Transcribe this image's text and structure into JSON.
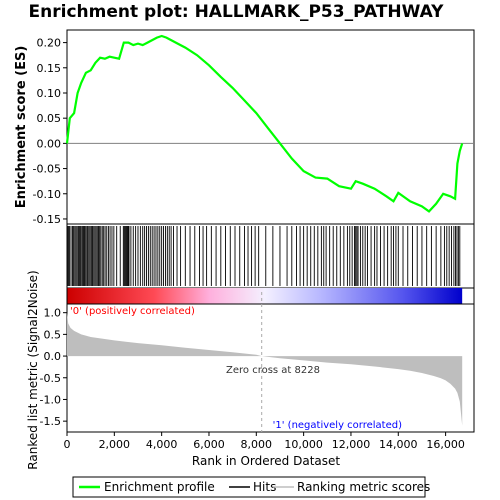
{
  "chart_data": {
    "type": "line",
    "title": "Enrichment plot: HALLMARK_P53_PATHWAY",
    "es_panel": {
      "ylabel": "Enrichment score (ES)",
      "ylim": [
        -0.16,
        0.225
      ],
      "yticks": [
        -0.15,
        -0.1,
        -0.05,
        0.0,
        0.05,
        0.1,
        0.15,
        0.2
      ],
      "ytick_labels": [
        "-0.15",
        "-0.10",
        "-0.05",
        "0.00",
        "0.05",
        "0.10",
        "0.15",
        "0.20"
      ],
      "series": [
        {
          "name": "Enrichment profile",
          "color": "#00ff00",
          "x": [
            0,
            120,
            300,
            450,
            600,
            800,
            1000,
            1200,
            1400,
            1600,
            1800,
            2000,
            2200,
            2400,
            2600,
            2800,
            3000,
            3200,
            3400,
            3600,
            3800,
            4000,
            4200,
            4400,
            4600,
            5000,
            5500,
            6000,
            6500,
            7000,
            7500,
            8000,
            8500,
            9000,
            9500,
            10000,
            10500,
            11000,
            11500,
            12000,
            12200,
            12500,
            13000,
            13500,
            13800,
            14000,
            14500,
            15000,
            15300,
            15600,
            15900,
            16200,
            16400,
            16500,
            16600,
            16700
          ],
          "y": [
            0.0,
            0.05,
            0.06,
            0.1,
            0.12,
            0.14,
            0.145,
            0.16,
            0.17,
            0.168,
            0.172,
            0.17,
            0.168,
            0.2,
            0.2,
            0.195,
            0.198,
            0.195,
            0.2,
            0.205,
            0.21,
            0.213,
            0.21,
            0.205,
            0.2,
            0.19,
            0.175,
            0.155,
            0.132,
            0.11,
            0.085,
            0.06,
            0.03,
            0.0,
            -0.03,
            -0.055,
            -0.068,
            -0.07,
            -0.085,
            -0.09,
            -0.075,
            -0.08,
            -0.09,
            -0.105,
            -0.115,
            -0.098,
            -0.115,
            -0.125,
            -0.135,
            -0.12,
            -0.1,
            -0.105,
            -0.11,
            -0.04,
            -0.015,
            0.0
          ]
        }
      ]
    },
    "hits": {
      "name": "Hits",
      "color": "#000000",
      "positions": [
        20,
        60,
        110,
        170,
        230,
        280,
        330,
        380,
        430,
        480,
        520,
        560,
        600,
        650,
        700,
        740,
        790,
        840,
        880,
        930,
        980,
        1030,
        1080,
        1130,
        1180,
        1230,
        1280,
        1330,
        1380,
        1430,
        1490,
        1550,
        1610,
        1680,
        1750,
        1820,
        1900,
        1980,
        2100,
        2250,
        2380,
        2420,
        2460,
        2500,
        2540,
        2580,
        2620,
        2700,
        2800,
        2900,
        3000,
        3100,
        3200,
        3280,
        3360,
        3440,
        3520,
        3600,
        3680,
        3760,
        3840,
        3920,
        4000,
        4080,
        4160,
        4240,
        4320,
        4400,
        4500,
        4650,
        4800,
        5000,
        5200,
        5400,
        5600,
        5750,
        5900,
        6100,
        6300,
        6500,
        6700,
        6900,
        7100,
        7300,
        7500,
        7650,
        7800,
        7950,
        8100,
        8400,
        8700,
        9000,
        9300,
        9500,
        9700,
        9850,
        10000,
        10150,
        10300,
        10450,
        10600,
        10750,
        10850,
        10950,
        11100,
        11250,
        11400,
        11550,
        11700,
        11850,
        11950,
        12050,
        12150,
        12200,
        12250,
        12300,
        12400,
        12500,
        12600,
        12700,
        12850,
        13000,
        13100,
        13250,
        13400,
        13550,
        13700,
        13800,
        13900,
        14000,
        14200,
        14400,
        14600,
        14800,
        15000,
        15200,
        15400,
        15600,
        15800,
        15950,
        16050,
        16150,
        16250,
        16350,
        16420,
        16480,
        16540,
        16600
      ]
    },
    "ranked_panel": {
      "ylabel": "Ranked list metric (Signal2Noise)",
      "xlabel": "Rank in Ordered Dataset",
      "ylim": [
        -1.75,
        1.2
      ],
      "yticks": [
        -1.5,
        -1.0,
        -0.5,
        0.0,
        0.5,
        1.0
      ],
      "ytick_labels": [
        "-1.5",
        "-1.0",
        "-0.5",
        "0.0",
        "0.5",
        "1.0"
      ],
      "xlim": [
        0,
        17200
      ],
      "xticks": [
        0,
        2000,
        4000,
        6000,
        8000,
        10000,
        12000,
        14000,
        16000
      ],
      "xtick_labels": [
        "0",
        "2,000",
        "4,000",
        "6,000",
        "8,000",
        "10,000",
        "12,000",
        "14,000",
        "16,000"
      ],
      "series": [
        {
          "name": "Ranking metric scores",
          "color": "#bebebe",
          "x": [
            0,
            50,
            150,
            300,
            600,
            1000,
            2000,
            3000,
            4000,
            5000,
            6000,
            7000,
            8000,
            8228,
            9000,
            10000,
            11000,
            12000,
            13000,
            14000,
            14500,
            15000,
            15500,
            15800,
            16000,
            16200,
            16400,
            16500,
            16600,
            16700
          ],
          "y": [
            1.0,
            0.75,
            0.65,
            0.58,
            0.5,
            0.44,
            0.36,
            0.3,
            0.25,
            0.19,
            0.14,
            0.09,
            0.03,
            0.0,
            -0.05,
            -0.1,
            -0.15,
            -0.19,
            -0.24,
            -0.3,
            -0.34,
            -0.39,
            -0.46,
            -0.51,
            -0.56,
            -0.64,
            -0.75,
            -0.85,
            -1.05,
            -1.6
          ]
        }
      ],
      "zero_cross_label": "Zero cross at 8228",
      "zero_cross_rank": 8228,
      "positive_label": "'0' (positively correlated)",
      "negative_label": "'1' (negatively correlated)"
    },
    "total_rank": 16700,
    "legend": {
      "placement": "bottom",
      "entries": [
        "Enrichment profile",
        "Hits",
        "Ranking metric scores"
      ]
    },
    "colors": {
      "es_line": "#00ff00",
      "zero_line": "#808080",
      "positive": "#ff0000",
      "negative": "#0000ff",
      "positive_text": "#ff0000",
      "negative_text": "#0000ff"
    }
  }
}
